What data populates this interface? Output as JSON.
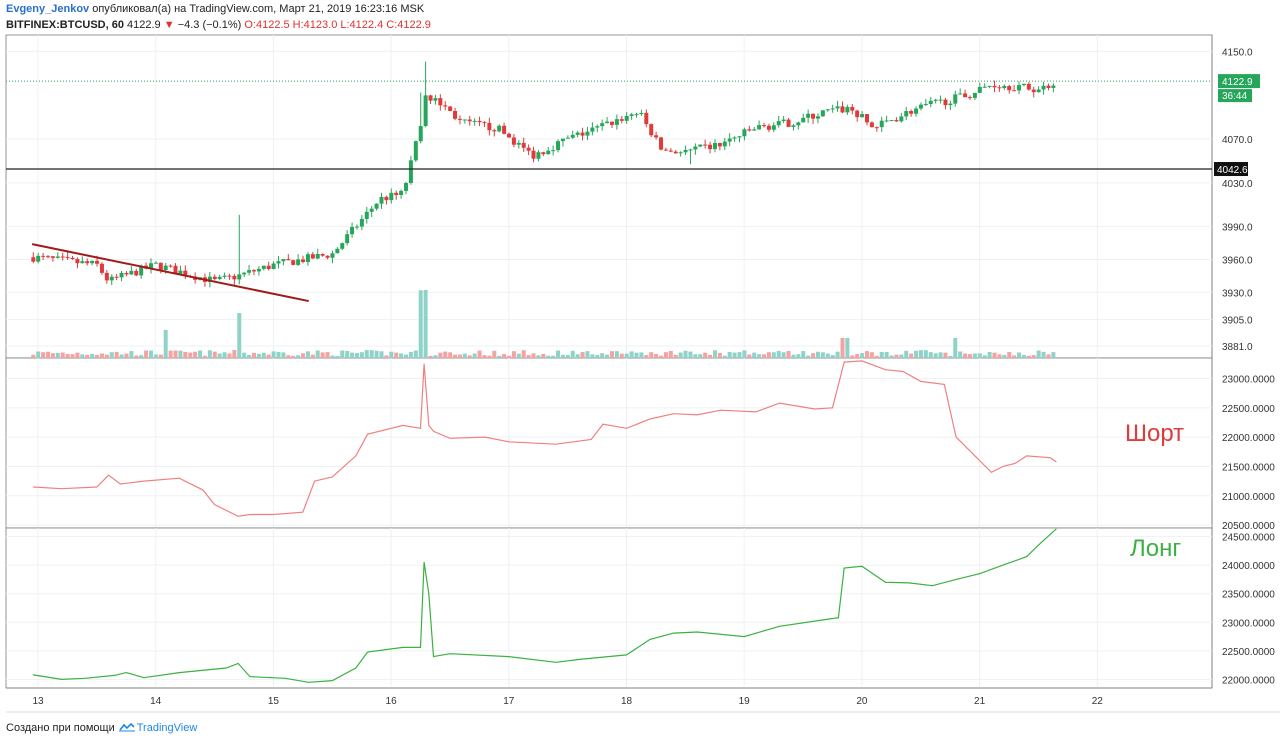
{
  "header": {
    "author": "Evgeny_Jenkov",
    "published_text": "опубликовал(а) на TradingView.com, Март 21, 2019 16:23:16 MSK",
    "symbol": "BITFINEX:BTCUSD, 60",
    "last_price": "4122.9",
    "change_arrow": "▼",
    "change": "−4.3 (−0.1%)",
    "ohlc": "O:4122.5 H:4123.0 L:4122.4 C:4122.9"
  },
  "footer": {
    "created_with": "Создано при помощи",
    "brand": "TradingView"
  },
  "labels": {
    "short": "Шорт",
    "long": "Лонг"
  },
  "colors": {
    "up": "#26a65b",
    "down": "#e03b3b",
    "vol_up": "#8fd3c8",
    "vol_down": "#f4a3a3",
    "short_line": "#f08080",
    "long_line": "#3cb043",
    "trendline": "#a11919",
    "price_dotted": "#26a65b",
    "hline": "#222222"
  },
  "chart_data": [
    {
      "type": "candlestick",
      "symbol": "BITFINEX:BTCUSD",
      "timeframe": "60",
      "x_ticks": [
        "13",
        "14",
        "15",
        "16",
        "17",
        "18",
        "19",
        "20",
        "21",
        "22"
      ],
      "y_ticks": [
        4150.0,
        4070.0,
        4030.0,
        3990.0,
        3960.0,
        3930.0,
        3905.0,
        3881.0
      ],
      "ylim": [
        3870,
        4165
      ],
      "last_price_label": "4122.9",
      "countdown_label": "36:44",
      "horizontal_line": 4042.6,
      "horizontal_line_label": "4042.6",
      "trendline": {
        "start": [
          12.95,
          3974
        ],
        "end": [
          15.3,
          3922
        ]
      },
      "grid": true
    },
    {
      "type": "line",
      "title": "Шорт",
      "y_ticks": [
        23000,
        22500,
        22000,
        21500,
        21000,
        20500
      ],
      "ylim": [
        20450,
        23350
      ],
      "x": [
        12.96,
        13.2,
        13.5,
        13.6,
        13.7,
        13.9,
        14.2,
        14.4,
        14.5,
        14.7,
        14.8,
        15.0,
        15.25,
        15.35,
        15.5,
        15.7,
        15.8,
        16.1,
        16.25,
        16.28,
        16.32,
        16.36,
        16.5,
        16.8,
        17.0,
        17.4,
        17.7,
        17.8,
        18.0,
        18.2,
        18.4,
        18.6,
        18.8,
        19.1,
        19.3,
        19.6,
        19.75,
        19.85,
        20.0,
        20.2,
        20.35,
        20.5,
        20.7,
        20.8,
        20.95,
        21.1,
        21.2,
        21.3,
        21.4,
        21.6,
        21.65
      ],
      "values": [
        21150,
        21120,
        21150,
        21350,
        21200,
        21250,
        21300,
        21100,
        20850,
        20650,
        20680,
        20680,
        20720,
        21250,
        21320,
        21680,
        22050,
        22200,
        22150,
        23250,
        22200,
        22100,
        21980,
        22000,
        21920,
        21880,
        21960,
        22220,
        22150,
        22310,
        22400,
        22380,
        22460,
        22430,
        22580,
        22480,
        22500,
        23280,
        23300,
        23150,
        23120,
        22950,
        22900,
        22000,
        21700,
        21400,
        21500,
        21550,
        21680,
        21650,
        21580
      ]
    },
    {
      "type": "line",
      "title": "Лонг",
      "y_ticks": [
        24500,
        24000,
        23500,
        23000,
        22500,
        22000
      ],
      "ylim": [
        21850,
        24650
      ],
      "x": [
        12.96,
        13.2,
        13.4,
        13.65,
        13.75,
        13.9,
        14.2,
        14.6,
        14.7,
        14.8,
        15.1,
        15.3,
        15.5,
        15.7,
        15.8,
        16.1,
        16.25,
        16.28,
        16.32,
        16.36,
        16.5,
        17.0,
        17.4,
        17.6,
        18.0,
        18.2,
        18.4,
        18.6,
        19.0,
        19.3,
        19.7,
        19.8,
        19.85,
        20.0,
        20.2,
        20.4,
        20.6,
        20.8,
        21.0,
        21.2,
        21.4,
        21.5,
        21.65
      ],
      "values": [
        22080,
        22000,
        22020,
        22070,
        22120,
        22030,
        22120,
        22200,
        22280,
        22050,
        22020,
        21950,
        21980,
        22200,
        22480,
        22560,
        22560,
        24050,
        23500,
        22400,
        22450,
        22400,
        22300,
        22350,
        22430,
        22700,
        22810,
        22830,
        22750,
        22930,
        23050,
        23080,
        23950,
        23980,
        23700,
        23690,
        23640,
        23750,
        23850,
        24000,
        24150,
        24350,
        24630
      ]
    }
  ]
}
